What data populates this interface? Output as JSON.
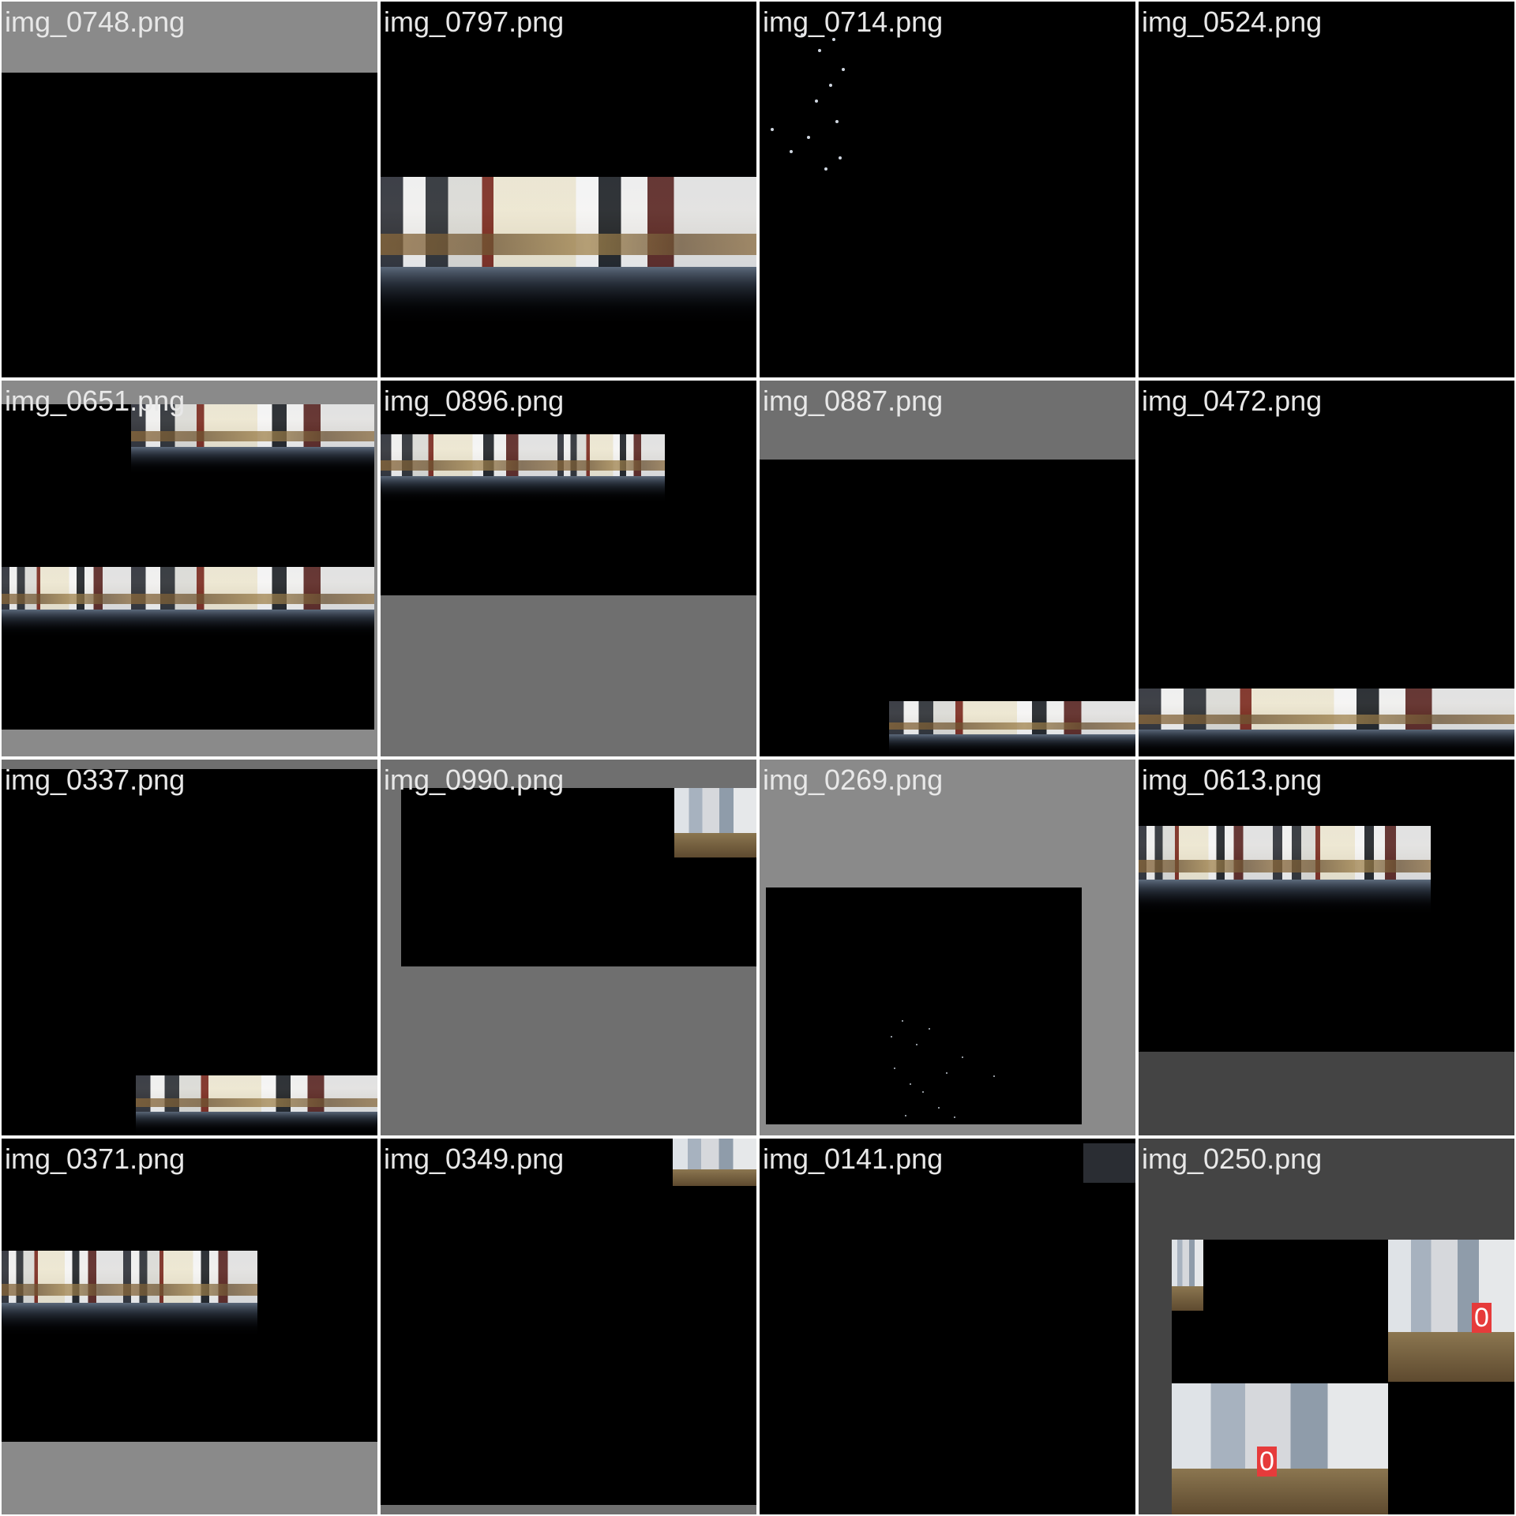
{
  "tiles": [
    {
      "filename": "img_0748.png"
    },
    {
      "filename": "img_0797.png"
    },
    {
      "filename": "img_0714.png"
    },
    {
      "filename": "img_0524.png"
    },
    {
      "filename": "img_0651.png"
    },
    {
      "filename": "img_0896.png"
    },
    {
      "filename": "img_0887.png"
    },
    {
      "filename": "img_0472.png"
    },
    {
      "filename": "img_0337.png"
    },
    {
      "filename": "img_0990.png"
    },
    {
      "filename": "img_0269.png"
    },
    {
      "filename": "img_0613.png"
    },
    {
      "filename": "img_0371.png"
    },
    {
      "filename": "img_0349.png"
    },
    {
      "filename": "img_0141.png"
    },
    {
      "filename": "img_0250.png"
    }
  ],
  "detections": [
    {
      "label": "0"
    },
    {
      "label": "0"
    }
  ],
  "colors": {
    "label_text": "#e8e8e8",
    "gray_pad_light": "#8a8a8a",
    "gray_pad_mid": "#6f6f6f",
    "gray_pad_dark": "#444444",
    "detection_box": "#e63b3b"
  }
}
